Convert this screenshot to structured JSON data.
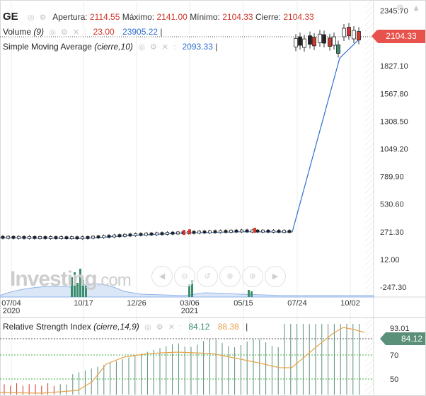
{
  "legend": {
    "ticker": "GE",
    "open_label": "Apertura:",
    "open_value": "2114.55",
    "high_label": "Máximo:",
    "high_value": "2141.00",
    "low_label": "Mínimo:",
    "low_value": "2104.33",
    "close_label": "Cierre:",
    "close_value": "2104.33",
    "volume_label": "Volume",
    "volume_param": "(9)",
    "volume_value_1": "23.00",
    "volume_value_2": "23905.22",
    "sma_label": "Simple Moving Average",
    "sma_param": "(cierre,10)",
    "sma_value": "2093.33",
    "rsi_label": "Relative Strength Index",
    "rsi_param": "(cierre,14,9)",
    "rsi_value_1": "84.12",
    "rsi_value_2": "88.38"
  },
  "price_badge": "2104.33",
  "rsi_badge": "84.12",
  "watermark": {
    "brand": "Investing",
    "suffix": ".com"
  },
  "colors": {
    "up": "#3b8e6c",
    "down": "#d0362b",
    "sma": "#2f6fd1",
    "rsi": "#e6a34a",
    "rsi_hist": "#5a8f79",
    "grid_green": "#3cb043"
  },
  "chart_data": [
    {
      "type": "candlestick",
      "title": "GE",
      "x_ticks": [
        "07/04",
        "10/17",
        "12/26",
        "03/06",
        "05/15",
        "07/24",
        "10/02"
      ],
      "x_years": [
        "2020",
        "2021"
      ],
      "y_ticks": [
        "2345.70",
        "2086.40",
        "1827.10",
        "1567.80",
        "1308.50",
        "1049.20",
        "789.90",
        "530.60",
        "271.30",
        "12.00",
        "-247.30"
      ],
      "ylim": [
        -247.3,
        2345.7
      ],
      "last_close": 2104.33,
      "candles_approx": [
        {
          "period": "early",
          "level": 220
        },
        {
          "period": "10/17",
          "level": 215
        },
        {
          "period": "12/26",
          "level": 245
        },
        {
          "period": "03/06",
          "level": 265
        },
        {
          "period": "05/15",
          "level": 280
        },
        {
          "period": "07/24",
          "level": 275
        },
        {
          "period": "late",
          "level": 2100
        }
      ],
      "sma_series_approx": [
        {
          "period": "07/04",
          "value": 215
        },
        {
          "period": "10/17",
          "value": 210
        },
        {
          "period": "12/26",
          "value": 240
        },
        {
          "period": "03/06",
          "value": 262
        },
        {
          "period": "05/15",
          "value": 272
        },
        {
          "period": "07/24",
          "value": 270
        },
        {
          "period": "08/14",
          "value": 1900
        },
        {
          "period": "10/02",
          "value": 2093.33
        }
      ]
    },
    {
      "type": "line",
      "title": "Relative Strength Index",
      "y_ticks": [
        "93.01",
        "70",
        "50"
      ],
      "rsi": 84.12,
      "signal": 88.38
    }
  ]
}
